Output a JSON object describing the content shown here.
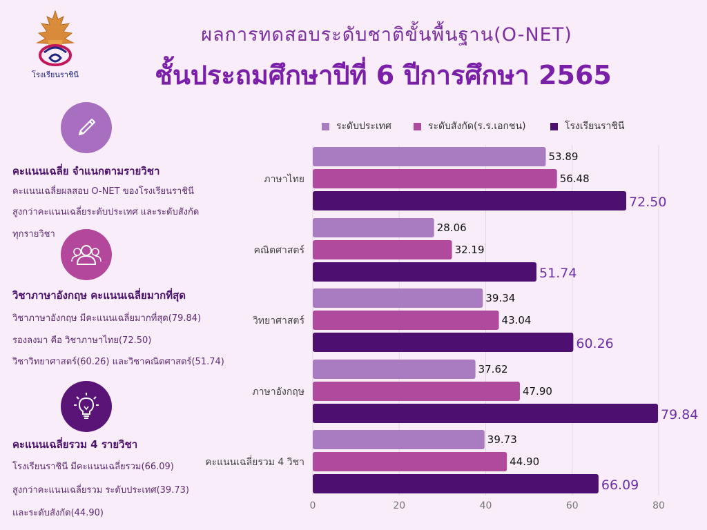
{
  "header": {
    "subtitle": "ผลการทดสอบระดับชาติขั้นพื้นฐาน(O-NET)",
    "title": "ชั้นประถมศึกษาปีที่ 6 ปีการศึกษา 2565",
    "logo_text": "โรงเรียนราชินี"
  },
  "panel1": {
    "heading": "คะแนนเฉลี่ย จำแนกตามรายวิชา",
    "lines": [
      "คะแนนเฉลี่ยผลสอบ O-NET ของโรงเรียนราชินี",
      "สูงกว่าคะแนนเฉลี่ยระดับประเทศ และระดับสังกัด",
      "ทุกรายวิชา"
    ],
    "icon": "pen-icon",
    "color": "#a86fc0"
  },
  "panel2": {
    "heading": "วิชาภาษาอังกฤษ  คะแนนเฉลี่ยมากที่สุด",
    "lines": [
      "วิชาภาษาอังกฤษ มีคะแนนเฉลี่ยมากที่สุด(79.84)",
      "รองลงมา คือ วิชาภาษาไทย(72.50)",
      "วิชาวิทยาศาสตร์(60.26) และวิชาคณิตศาสตร์(51.74)"
    ],
    "icon": "group-icon",
    "color": "#b3479b"
  },
  "panel3": {
    "heading": "คะแนนเฉลี่ยรวม 4 รายวิชา",
    "lines": [
      "โรงเรียนราชินี มีคะแนนเฉลี่ยรวม(66.09)",
      "สูงกว่าคะแนนเฉลี่ยรวม ระดับประเทศ(39.73)",
      "และระดับสังกัด(44.90)"
    ],
    "icon": "lightbulb-icon",
    "color": "#5a1478"
  },
  "chart_data": {
    "type": "bar",
    "orientation": "horizontal",
    "categories": [
      "ภาษาไทย",
      "คณิตศาสตร์",
      "วิทยาศาสตร์",
      "ภาษาอังกฤษ",
      "คะแนนเฉลี่ยรวม 4 วิชา"
    ],
    "series": [
      {
        "name": "ระดับประเทศ",
        "color": "#a97cc1",
        "values": [
          53.89,
          28.06,
          39.34,
          37.62,
          39.73
        ],
        "labels": [
          "53.89",
          "28.06",
          "39.34",
          "37.62",
          "39.73"
        ]
      },
      {
        "name": "ระดับสังกัด(ร.ร.เอกชน)",
        "color": "#b04a9c",
        "values": [
          56.48,
          32.19,
          43.04,
          47.9,
          44.9
        ],
        "labels": [
          "56.48",
          "32.19",
          "43.04",
          "47.90",
          "44.90"
        ]
      },
      {
        "name": "โรงเรียนราชินี",
        "color": "#4d0f70",
        "values": [
          72.5,
          51.74,
          60.26,
          79.84,
          66.09
        ],
        "labels": [
          "72.50",
          "51.74",
          "60.26",
          "79.84",
          "66.09"
        ]
      }
    ],
    "xlim": [
      0,
      80
    ],
    "xticks": [
      "0",
      "20",
      "40",
      "60",
      "80"
    ],
    "grid": true,
    "legend": "top"
  }
}
